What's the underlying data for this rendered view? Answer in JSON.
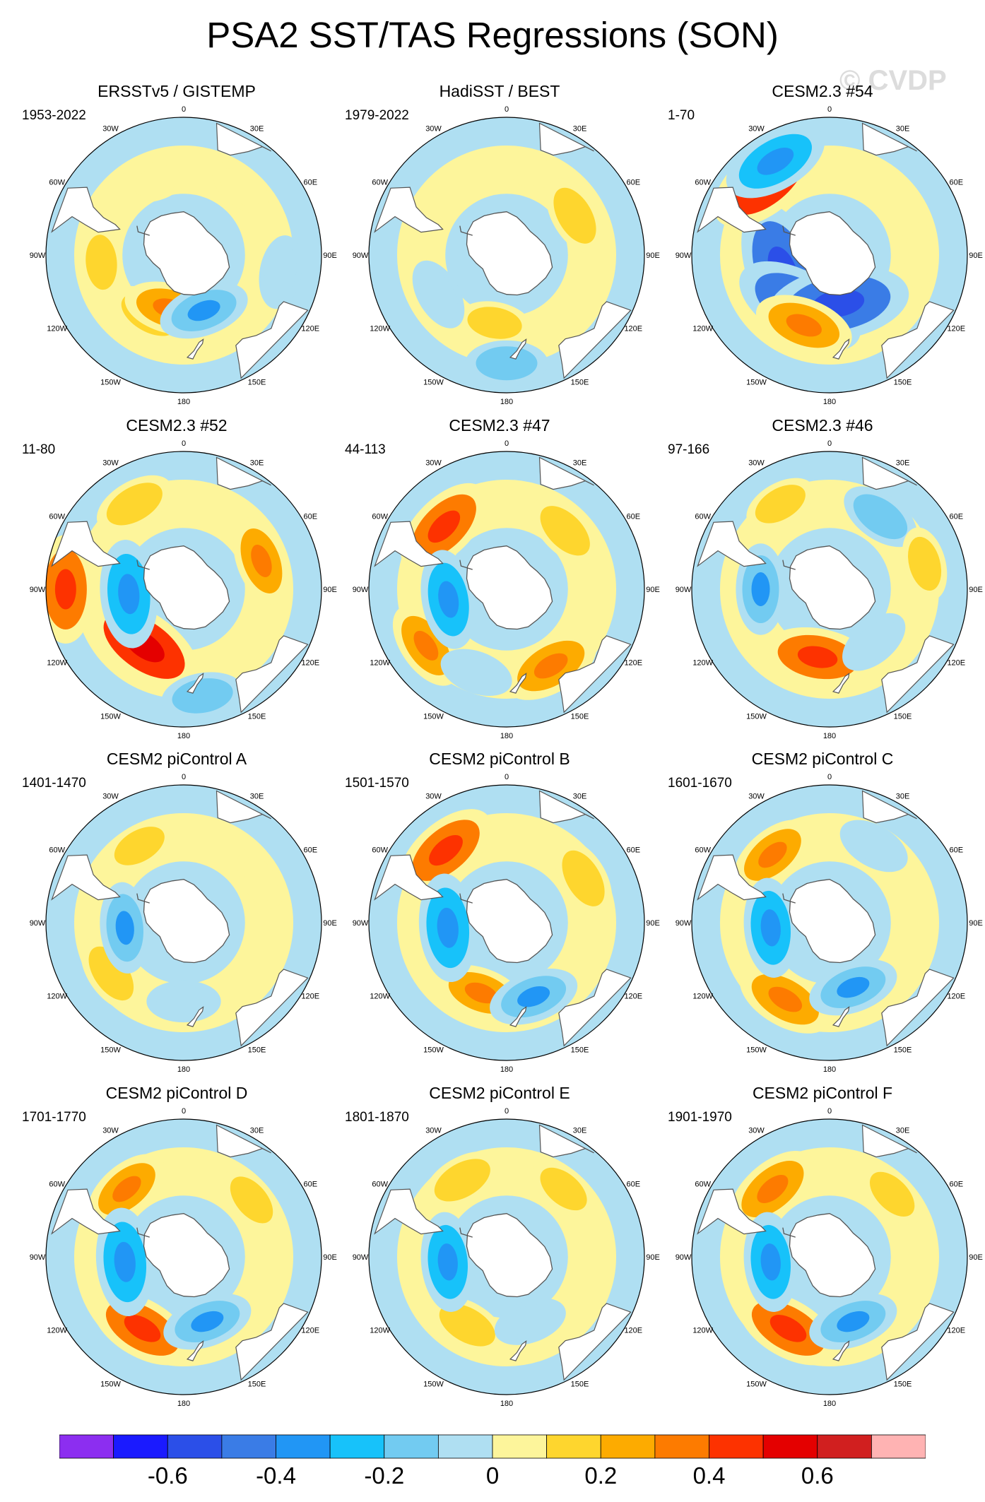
{
  "title": "PSA2 SST/TAS Regressions (SON)",
  "watermark": "© CVDP",
  "chart_data": {
    "type": "heatmap",
    "projection": "south polar stereographic",
    "longitude_labels": [
      "0",
      "30E",
      "60E",
      "90E",
      "120E",
      "150E",
      "180",
      "150W",
      "120W",
      "90W",
      "60W",
      "30W"
    ],
    "colorbar": {
      "levels": [
        -0.7,
        -0.6,
        -0.5,
        -0.4,
        -0.3,
        -0.2,
        -0.1,
        0,
        0.1,
        0.2,
        0.3,
        0.4,
        0.5,
        0.6,
        0.7
      ],
      "colors": [
        "#8c2ef0",
        "#1a1aff",
        "#2b4fe8",
        "#3a7ce6",
        "#2196f5",
        "#17c2fa",
        "#72cbf1",
        "#afdff2",
        "#fdf59b",
        "#fed62e",
        "#fdab00",
        "#fd7b00",
        "#fd3200",
        "#e40000",
        "#d11f1f",
        "#ffb3b3"
      ],
      "tick_labels": [
        "-0.6",
        "-0.4",
        "-0.2",
        "0",
        "0.2",
        "0.4",
        "0.6"
      ],
      "tick_values": [
        -0.6,
        -0.4,
        -0.2,
        0,
        0.2,
        0.4,
        0.6
      ]
    },
    "panels": [
      {
        "title": "ERSSTv5 / GISTEMP",
        "period": "1953-2022",
        "anomalies": [
          {
            "lon": -95,
            "lat": -48,
            "value": 0.1
          },
          {
            "lon": -150,
            "lat": -55,
            "value": 0.15
          },
          {
            "lon": -165,
            "lat": -62,
            "value": 0.2
          },
          {
            "lon": 40,
            "lat": -45,
            "value": 0.05
          },
          {
            "lon": -20,
            "lat": -50,
            "value": 0.05
          },
          {
            "lon": 160,
            "lat": -60,
            "value": -0.2
          },
          {
            "lon": 100,
            "lat": -40,
            "value": -0.1
          }
        ]
      },
      {
        "title": "HadiSST / BEST",
        "period": "1979-2022",
        "anomalies": [
          {
            "lon": 20,
            "lat": -45,
            "value": 0.05
          },
          {
            "lon": 60,
            "lat": -50,
            "value": 0.15
          },
          {
            "lon": -170,
            "lat": -55,
            "value": 0.1
          },
          {
            "lon": 180,
            "lat": -35,
            "value": -0.15
          },
          {
            "lon": -120,
            "lat": -50,
            "value": -0.1
          }
        ]
      },
      {
        "title": "CESM2.3 #54",
        "period": "1-70",
        "anomalies": [
          {
            "lon": -110,
            "lat": -65,
            "value": -0.5
          },
          {
            "lon": -150,
            "lat": -60,
            "value": -0.45
          },
          {
            "lon": 170,
            "lat": -65,
            "value": -0.5
          },
          {
            "lon": -40,
            "lat": -40,
            "value": 0.4
          },
          {
            "lon": -160,
            "lat": -52,
            "value": 0.25
          },
          {
            "lon": -30,
            "lat": -35,
            "value": -0.3
          },
          {
            "lon": 90,
            "lat": -45,
            "value": 0.05
          }
        ]
      },
      {
        "title": "CESM2.3 #52",
        "period": "11-80",
        "anomalies": [
          {
            "lon": -145,
            "lat": -55,
            "value": 0.4
          },
          {
            "lon": -90,
            "lat": -30,
            "value": 0.3
          },
          {
            "lon": -95,
            "lat": -62,
            "value": -0.3
          },
          {
            "lon": 70,
            "lat": -48,
            "value": 0.2
          },
          {
            "lon": -30,
            "lat": -40,
            "value": 0.15
          },
          {
            "lon": 170,
            "lat": -35,
            "value": -0.15
          }
        ]
      },
      {
        "title": "CESM2.3 #47",
        "period": "44-113",
        "anomalies": [
          {
            "lon": -45,
            "lat": -45,
            "value": 0.3
          },
          {
            "lon": -125,
            "lat": -40,
            "value": 0.2
          },
          {
            "lon": -100,
            "lat": -60,
            "value": -0.25
          },
          {
            "lon": 150,
            "lat": -45,
            "value": 0.25
          },
          {
            "lon": 45,
            "lat": -48,
            "value": 0.15
          },
          {
            "lon": -160,
            "lat": -45,
            "value": -0.1
          }
        ]
      },
      {
        "title": "CESM2.3 #46",
        "period": "97-166",
        "anomalies": [
          {
            "lon": -90,
            "lat": -55,
            "value": -0.2
          },
          {
            "lon": -170,
            "lat": -55,
            "value": 0.3
          },
          {
            "lon": 35,
            "lat": -45,
            "value": -0.15
          },
          {
            "lon": 75,
            "lat": -40,
            "value": 0.1
          },
          {
            "lon": -30,
            "lat": -40,
            "value": 0.1
          },
          {
            "lon": 140,
            "lat": -55,
            "value": -0.1
          }
        ]
      },
      {
        "title": "CESM2 piControl A",
        "period": "1401-1470",
        "anomalies": [
          {
            "lon": -30,
            "lat": -45,
            "value": 0.1
          },
          {
            "lon": -125,
            "lat": -45,
            "value": 0.15
          },
          {
            "lon": -95,
            "lat": -60,
            "value": -0.2
          },
          {
            "lon": 180,
            "lat": -50,
            "value": -0.1
          },
          {
            "lon": 60,
            "lat": -45,
            "value": 0.05
          }
        ]
      },
      {
        "title": "CESM2 piControl B",
        "period": "1501-1570",
        "anomalies": [
          {
            "lon": -40,
            "lat": -42,
            "value": 0.3
          },
          {
            "lon": -160,
            "lat": -52,
            "value": 0.2
          },
          {
            "lon": -95,
            "lat": -60,
            "value": -0.3
          },
          {
            "lon": 160,
            "lat": -50,
            "value": -0.2
          },
          {
            "lon": 60,
            "lat": -45,
            "value": 0.15
          }
        ]
      },
      {
        "title": "CESM2 piControl C",
        "period": "1601-1670",
        "anomalies": [
          {
            "lon": -40,
            "lat": -45,
            "value": 0.2
          },
          {
            "lon": -150,
            "lat": -45,
            "value": 0.25
          },
          {
            "lon": -95,
            "lat": -60,
            "value": -0.25
          },
          {
            "lon": 160,
            "lat": -55,
            "value": -0.2
          },
          {
            "lon": 30,
            "lat": -45,
            "value": -0.1
          }
        ]
      },
      {
        "title": "CESM2 piControl D",
        "period": "1701-1770",
        "anomalies": [
          {
            "lon": -40,
            "lat": -45,
            "value": 0.2
          },
          {
            "lon": -150,
            "lat": -48,
            "value": 0.3
          },
          {
            "lon": -95,
            "lat": -60,
            "value": -0.3
          },
          {
            "lon": 160,
            "lat": -55,
            "value": -0.2
          },
          {
            "lon": 50,
            "lat": -45,
            "value": 0.1
          }
        ]
      },
      {
        "title": "CESM2 piControl E",
        "period": "1801-1870",
        "anomalies": [
          {
            "lon": -30,
            "lat": -45,
            "value": 0.15
          },
          {
            "lon": -150,
            "lat": -50,
            "value": 0.15
          },
          {
            "lon": -95,
            "lat": -60,
            "value": -0.25
          },
          {
            "lon": 160,
            "lat": -55,
            "value": -0.1
          },
          {
            "lon": 40,
            "lat": -45,
            "value": 0.1
          }
        ]
      },
      {
        "title": "CESM2 piControl F",
        "period": "1901-1970",
        "anomalies": [
          {
            "lon": -40,
            "lat": -45,
            "value": 0.25
          },
          {
            "lon": -150,
            "lat": -48,
            "value": 0.3
          },
          {
            "lon": -95,
            "lat": -60,
            "value": -0.25
          },
          {
            "lon": 160,
            "lat": -55,
            "value": -0.2
          },
          {
            "lon": 45,
            "lat": -45,
            "value": 0.1
          }
        ]
      }
    ]
  }
}
